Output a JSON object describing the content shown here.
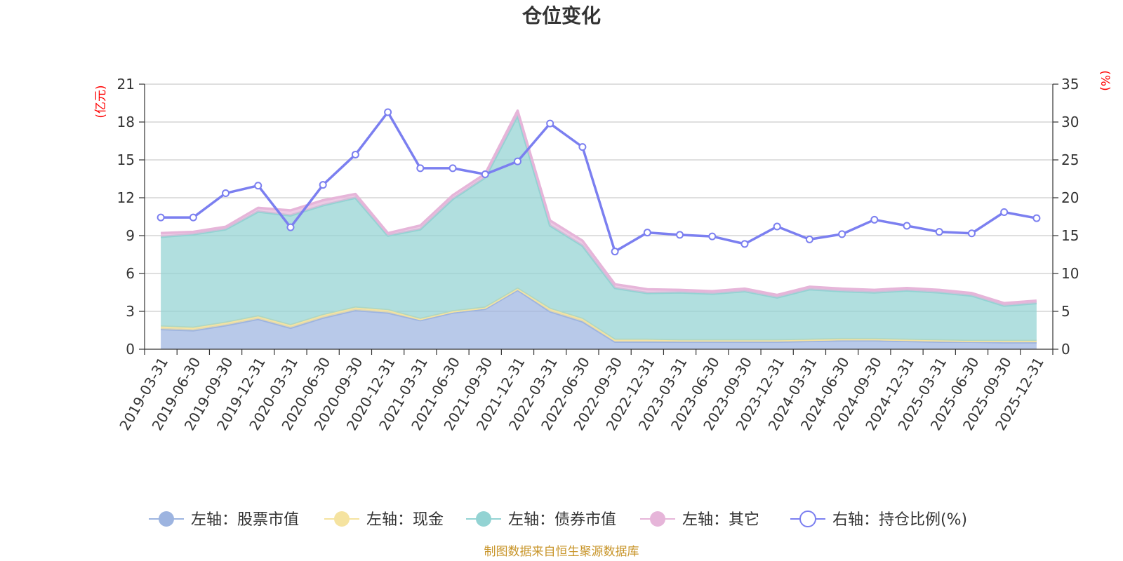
{
  "chart_data": {
    "type": "area",
    "title": "仓位变化",
    "source_text": "制图数据来自恒生聚源数据库",
    "y_left": {
      "unit": "(亿元)",
      "range": [
        0,
        21
      ],
      "ticks": [
        0,
        3,
        6,
        9,
        12,
        15,
        18,
        21
      ]
    },
    "y_right": {
      "unit": "(%)",
      "range": [
        0,
        35
      ],
      "ticks": [
        0,
        5,
        10,
        15,
        20,
        25,
        30,
        35
      ]
    },
    "grid": true,
    "legend_position": "bottom",
    "categories": [
      "2019-03-31",
      "2019-06-30",
      "2019-09-30",
      "2019-12-31",
      "2020-03-31",
      "2020-06-30",
      "2020-09-30",
      "2020-12-31",
      "2021-03-31",
      "2021-06-30",
      "2021-09-30",
      "2021-12-31",
      "2022-03-31",
      "2022-06-30",
      "2022-09-30",
      "2022-12-31",
      "2023-03-31",
      "2023-06-30",
      "2023-09-30",
      "2023-12-31",
      "2024-03-31",
      "2024-06-30",
      "2024-09-30",
      "2024-12-31",
      "2025-03-31",
      "2025-06-30",
      "2025-09-30",
      "2025-12-31"
    ],
    "series": [
      {
        "name": "左轴：股票市值",
        "axis": "left",
        "kind": "stacked-area",
        "color": "#9db4e0",
        "values": [
          1.6,
          1.5,
          1.9,
          2.4,
          1.7,
          2.5,
          3.1,
          2.9,
          2.3,
          2.9,
          3.2,
          4.7,
          3.0,
          2.2,
          0.6,
          0.6,
          0.6,
          0.6,
          0.6,
          0.6,
          0.65,
          0.7,
          0.7,
          0.65,
          0.6,
          0.6,
          0.55,
          0.55
        ]
      },
      {
        "name": "左轴：现金",
        "axis": "left",
        "kind": "stacked-area",
        "color": "#f5e3a0",
        "values": [
          0.2,
          0.2,
          0.2,
          0.2,
          0.2,
          0.2,
          0.2,
          0.2,
          0.1,
          0.1,
          0.1,
          0.1,
          0.2,
          0.2,
          0.15,
          0.15,
          0.1,
          0.1,
          0.1,
          0.1,
          0.1,
          0.1,
          0.1,
          0.1,
          0.1,
          0.05,
          0.1,
          0.1
        ]
      },
      {
        "name": "左轴：债券市值",
        "axis": "left",
        "kind": "stacked-area",
        "color": "#93d3d3",
        "values": [
          7.1,
          7.4,
          7.4,
          8.3,
          8.7,
          8.7,
          8.7,
          5.9,
          7.1,
          8.9,
          10.3,
          13.7,
          6.6,
          5.8,
          4.1,
          3.7,
          3.8,
          3.7,
          3.9,
          3.4,
          4.0,
          3.8,
          3.7,
          3.9,
          3.8,
          3.6,
          2.8,
          3.0
        ]
      },
      {
        "name": "左轴：其它",
        "axis": "left",
        "kind": "stacked-area",
        "color": "#e6b5d9",
        "values": [
          0.3,
          0.2,
          0.2,
          0.3,
          0.4,
          0.4,
          0.3,
          0.2,
          0.3,
          0.3,
          0.3,
          0.4,
          0.4,
          0.4,
          0.3,
          0.3,
          0.2,
          0.2,
          0.2,
          0.2,
          0.2,
          0.2,
          0.2,
          0.2,
          0.2,
          0.2,
          0.2,
          0.2
        ]
      },
      {
        "name": "右轴：持仓比例(%)",
        "axis": "right",
        "kind": "line",
        "color": "#7b7ff0",
        "values": [
          17.4,
          17.4,
          20.6,
          21.6,
          16.1,
          21.7,
          25.7,
          31.3,
          23.9,
          23.9,
          23.1,
          24.8,
          29.8,
          26.7,
          12.9,
          15.4,
          15.1,
          14.9,
          13.9,
          16.2,
          14.5,
          15.2,
          17.1,
          16.3,
          15.5,
          15.3,
          18.1,
          17.3
        ]
      }
    ]
  }
}
